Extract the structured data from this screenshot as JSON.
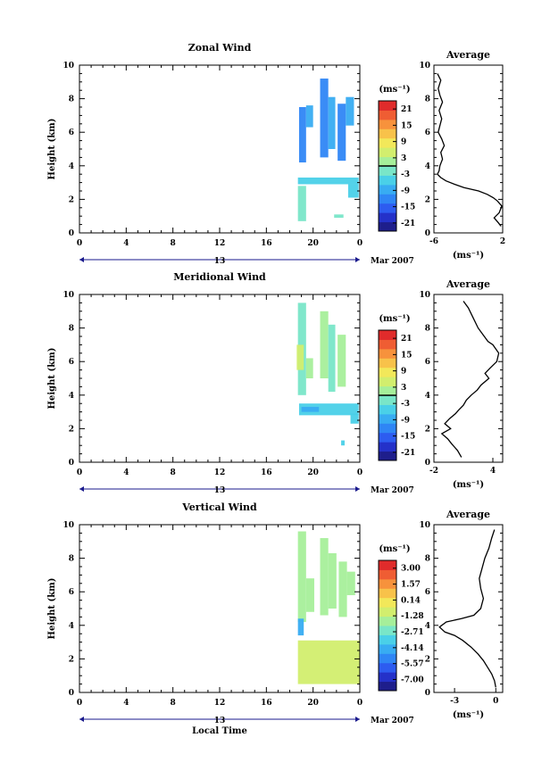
{
  "colors": {
    "scale": [
      "#1e1e8c",
      "#2431c9",
      "#2d5cf0",
      "#2f86f5",
      "#38acf2",
      "#4ad0e8",
      "#79e6c8",
      "#a6ef9a",
      "#d2ee6e",
      "#f2e85a",
      "#f8c24a",
      "#f7923c",
      "#ef5d33",
      "#e02b2b"
    ],
    "axis": "#000000",
    "date_axis": "#1a1a8c"
  },
  "date_label": "Mar 2007",
  "date_day": "13",
  "xlabel": "Local Time",
  "ylabel": "Height (km)",
  "unit_label": "(ms⁻¹)",
  "avg_title": "Average",
  "chart_data": [
    {
      "type": "heatmap",
      "title": "Zonal Wind",
      "xlim": [
        0,
        24
      ],
      "ylim": [
        0,
        10
      ],
      "x_ticks": [
        "0",
        "4",
        "8",
        "12",
        "16",
        "20",
        "0"
      ],
      "y_ticks": [
        "0",
        "2",
        "4",
        "6",
        "8",
        "10"
      ],
      "colorbar_ticks": [
        "21",
        "15",
        "9",
        "3",
        "-3",
        "-9",
        "-15",
        "-21"
      ],
      "colorbar_range": [
        -24,
        24
      ],
      "zero_level": 0,
      "cells": [
        {
          "x0": 18.8,
          "x1": 19.4,
          "y0": 4.2,
          "y1": 7.5,
          "c": 3
        },
        {
          "x0": 19.4,
          "x1": 20.0,
          "y0": 6.3,
          "y1": 7.6,
          "c": 4
        },
        {
          "x0": 20.6,
          "x1": 21.3,
          "y0": 4.5,
          "y1": 9.2,
          "c": 3
        },
        {
          "x0": 21.3,
          "x1": 21.9,
          "y0": 5.0,
          "y1": 8.1,
          "c": 4
        },
        {
          "x0": 22.1,
          "x1": 22.8,
          "y0": 4.3,
          "y1": 7.7,
          "c": 3
        },
        {
          "x0": 22.8,
          "x1": 23.5,
          "y0": 6.4,
          "y1": 8.1,
          "c": 4
        },
        {
          "x0": 18.7,
          "x1": 23.9,
          "y0": 2.9,
          "y1": 3.3,
          "c": 5
        },
        {
          "x0": 18.7,
          "x1": 19.4,
          "y0": 0.7,
          "y1": 2.8,
          "c": 6
        },
        {
          "x0": 23.0,
          "x1": 23.9,
          "y0": 2.1,
          "y1": 2.9,
          "c": 5
        },
        {
          "x0": 21.8,
          "x1": 22.6,
          "y0": 0.9,
          "y1": 1.1,
          "c": 6
        }
      ],
      "average": {
        "xlim": [
          -6,
          2
        ],
        "x_ticks": [
          "-6",
          "2"
        ],
        "x": [
          -5.6,
          -5.2,
          -5.5,
          -5.3,
          -5.0,
          -5.4,
          -5.1,
          -5.3,
          -5.5,
          -5.1,
          -4.8,
          -5.2,
          -5.0,
          -5.3,
          -5.4,
          -5.6,
          -5.2,
          -4.6,
          -3.6,
          -2.5,
          -0.8,
          0.2,
          0.9,
          1.4,
          1.9,
          1.6,
          1.0,
          1.5,
          1.8
        ],
        "y": [
          9.5,
          9.1,
          8.6,
          8.2,
          7.8,
          7.3,
          6.8,
          6.4,
          6.0,
          5.6,
          5.2,
          4.8,
          4.4,
          4.0,
          3.7,
          3.5,
          3.3,
          3.1,
          2.9,
          2.7,
          2.5,
          2.3,
          2.1,
          1.9,
          1.6,
          1.2,
          0.9,
          0.6,
          0.4
        ]
      }
    },
    {
      "type": "heatmap",
      "title": "Meridional Wind",
      "xlim": [
        0,
        24
      ],
      "ylim": [
        0,
        10
      ],
      "x_ticks": [
        "0",
        "4",
        "8",
        "12",
        "16",
        "20",
        "0"
      ],
      "y_ticks": [
        "0",
        "2",
        "4",
        "6",
        "8",
        "10"
      ],
      "colorbar_ticks": [
        "21",
        "15",
        "9",
        "3",
        "-3",
        "-9",
        "-15",
        "-21"
      ],
      "colorbar_range": [
        -24,
        24
      ],
      "zero_level": 0,
      "cells": [
        {
          "x0": 18.7,
          "x1": 19.4,
          "y0": 4.0,
          "y1": 9.5,
          "c": 6
        },
        {
          "x0": 18.6,
          "x1": 19.2,
          "y0": 5.5,
          "y1": 7.0,
          "c": 8
        },
        {
          "x0": 19.4,
          "x1": 20.0,
          "y0": 5.0,
          "y1": 6.2,
          "c": 7
        },
        {
          "x0": 20.6,
          "x1": 21.3,
          "y0": 5.0,
          "y1": 9.0,
          "c": 7
        },
        {
          "x0": 21.3,
          "x1": 21.9,
          "y0": 4.2,
          "y1": 8.2,
          "c": 6
        },
        {
          "x0": 22.1,
          "x1": 22.8,
          "y0": 4.5,
          "y1": 7.6,
          "c": 7
        },
        {
          "x0": 18.8,
          "x1": 23.9,
          "y0": 2.8,
          "y1": 3.5,
          "c": 5
        },
        {
          "x0": 19.0,
          "x1": 20.5,
          "y0": 3.0,
          "y1": 3.3,
          "c": 4
        },
        {
          "x0": 23.2,
          "x1": 23.9,
          "y0": 2.3,
          "y1": 2.9,
          "c": 5
        },
        {
          "x0": 22.4,
          "x1": 22.7,
          "y0": 1.0,
          "y1": 1.3,
          "c": 5
        }
      ],
      "average": {
        "xlim": [
          -2,
          5
        ],
        "x_ticks": [
          "-2",
          "4"
        ],
        "x": [
          1.0,
          1.5,
          2.0,
          2.5,
          3.0,
          3.5,
          4.0,
          4.6,
          4.4,
          3.7,
          3.2,
          3.6,
          2.8,
          2.4,
          1.8,
          1.3,
          1.0,
          0.5,
          0.2,
          -0.4,
          -0.9,
          -0.3,
          -1.2,
          -0.6,
          -0.2,
          0.4,
          0.8
        ],
        "y": [
          9.6,
          9.2,
          8.6,
          8.0,
          7.6,
          7.2,
          7.0,
          6.5,
          6.0,
          5.6,
          5.3,
          5.0,
          4.6,
          4.3,
          4.0,
          3.7,
          3.4,
          3.1,
          2.9,
          2.6,
          2.3,
          2.0,
          1.7,
          1.4,
          1.1,
          0.7,
          0.3
        ]
      }
    },
    {
      "type": "heatmap",
      "title": "Vertical Wind",
      "xlim": [
        0,
        24
      ],
      "ylim": [
        0,
        10
      ],
      "x_ticks": [
        "0",
        "4",
        "8",
        "12",
        "16",
        "20",
        "0"
      ],
      "y_ticks": [
        "0",
        "2",
        "4",
        "6",
        "8",
        "10"
      ],
      "colorbar_ticks": [
        "3.00",
        "1.57",
        "0.14",
        "-1.28",
        "-2.71",
        "-4.14",
        "-5.57",
        "-7.00"
      ],
      "colorbar_range": [
        -8,
        3.7
      ],
      "zero_level": null,
      "cells": [
        {
          "x0": 18.7,
          "x1": 19.4,
          "y0": 4.2,
          "y1": 9.6,
          "c": 7
        },
        {
          "x0": 19.4,
          "x1": 20.1,
          "y0": 4.8,
          "y1": 6.8,
          "c": 7
        },
        {
          "x0": 20.6,
          "x1": 21.3,
          "y0": 4.6,
          "y1": 9.2,
          "c": 7
        },
        {
          "x0": 21.3,
          "x1": 22.0,
          "y0": 5.0,
          "y1": 8.3,
          "c": 7
        },
        {
          "x0": 22.2,
          "x1": 22.9,
          "y0": 4.5,
          "y1": 7.8,
          "c": 7
        },
        {
          "x0": 22.9,
          "x1": 23.6,
          "y0": 5.8,
          "y1": 7.2,
          "c": 7
        },
        {
          "x0": 18.7,
          "x1": 19.2,
          "y0": 3.4,
          "y1": 4.4,
          "c": 4
        },
        {
          "x0": 18.7,
          "x1": 24.0,
          "y0": 0.5,
          "y1": 3.1,
          "c": 8
        }
      ],
      "average": {
        "xlim": [
          -4.5,
          0.5
        ],
        "x_ticks": [
          "-3",
          "0"
        ],
        "x": [
          -0.1,
          -0.3,
          -0.5,
          -0.8,
          -1.0,
          -1.2,
          -1.1,
          -0.9,
          -1.1,
          -1.6,
          -2.5,
          -3.6,
          -4.1,
          -3.7,
          -3.0,
          -2.4,
          -1.8,
          -1.3,
          -0.9,
          -0.6,
          -0.3,
          -0.1,
          0.0
        ],
        "y": [
          9.7,
          9.2,
          8.6,
          8.0,
          7.4,
          6.8,
          6.2,
          5.6,
          5.0,
          4.6,
          4.4,
          4.2,
          3.9,
          3.6,
          3.4,
          3.1,
          2.7,
          2.3,
          1.9,
          1.5,
          1.1,
          0.7,
          0.3
        ]
      }
    }
  ]
}
